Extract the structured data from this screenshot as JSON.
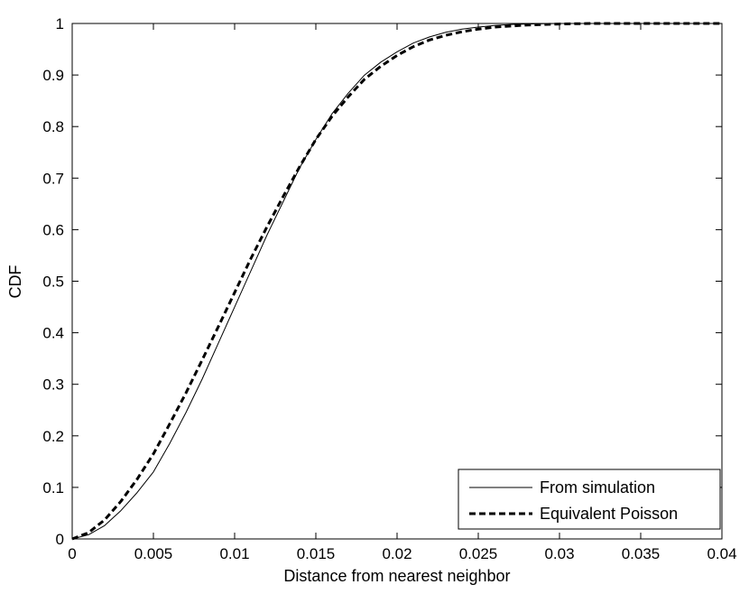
{
  "chart_data": {
    "type": "line",
    "title": "",
    "xlabel": "Distance from nearest neighbor",
    "ylabel": "CDF",
    "xlim": [
      0,
      0.04
    ],
    "ylim": [
      0,
      1
    ],
    "xticks": [
      0,
      0.005,
      0.01,
      0.015,
      0.02,
      0.025,
      0.03,
      0.035,
      0.04
    ],
    "xtick_labels": [
      "0",
      "0.005",
      "0.01",
      "0.015",
      "0.02",
      "0.025",
      "0.03",
      "0.035",
      "0.04"
    ],
    "yticks": [
      0,
      0.1,
      0.2,
      0.3,
      0.4,
      0.5,
      0.6,
      0.7,
      0.8,
      0.9,
      1
    ],
    "ytick_labels": [
      "0",
      "0.1",
      "0.2",
      "0.3",
      "0.4",
      "0.5",
      "0.6",
      "0.7",
      "0.8",
      "0.9",
      "1"
    ],
    "grid": false,
    "legend_position": "bottom-right",
    "series": [
      {
        "name": "From simulation",
        "line_style": "solid",
        "color": "#000000",
        "x": [
          0,
          0.001,
          0.002,
          0.003,
          0.004,
          0.005,
          0.006,
          0.007,
          0.008,
          0.009,
          0.01,
          0.011,
          0.012,
          0.013,
          0.014,
          0.015,
          0.016,
          0.017,
          0.018,
          0.019,
          0.02,
          0.021,
          0.022,
          0.023,
          0.024,
          0.025,
          0.026,
          0.027,
          0.028,
          0.029,
          0.03,
          0.032,
          0.035,
          0.04
        ],
        "values": [
          0,
          0.008,
          0.026,
          0.055,
          0.09,
          0.13,
          0.185,
          0.245,
          0.31,
          0.38,
          0.45,
          0.52,
          0.59,
          0.655,
          0.72,
          0.775,
          0.825,
          0.865,
          0.9,
          0.925,
          0.945,
          0.962,
          0.974,
          0.983,
          0.989,
          0.993,
          0.996,
          0.998,
          0.999,
          0.9995,
          1.0,
          1.0,
          1.0,
          1.0
        ]
      },
      {
        "name": "Equivalent Poisson",
        "line_style": "dashed",
        "color": "#000000",
        "x": [
          0,
          0.001,
          0.002,
          0.003,
          0.004,
          0.005,
          0.006,
          0.007,
          0.008,
          0.009,
          0.01,
          0.011,
          0.012,
          0.013,
          0.014,
          0.015,
          0.016,
          0.017,
          0.018,
          0.019,
          0.02,
          0.021,
          0.022,
          0.023,
          0.024,
          0.025,
          0.026,
          0.027,
          0.028,
          0.029,
          0.03,
          0.032,
          0.035,
          0.04
        ],
        "values": [
          0,
          0.012,
          0.037,
          0.073,
          0.116,
          0.165,
          0.223,
          0.283,
          0.347,
          0.412,
          0.478,
          0.544,
          0.606,
          0.665,
          0.722,
          0.775,
          0.82,
          0.858,
          0.892,
          0.917,
          0.938,
          0.955,
          0.968,
          0.977,
          0.984,
          0.989,
          0.993,
          0.995,
          0.997,
          0.998,
          0.999,
          1.0,
          1.0,
          1.0
        ]
      }
    ]
  }
}
